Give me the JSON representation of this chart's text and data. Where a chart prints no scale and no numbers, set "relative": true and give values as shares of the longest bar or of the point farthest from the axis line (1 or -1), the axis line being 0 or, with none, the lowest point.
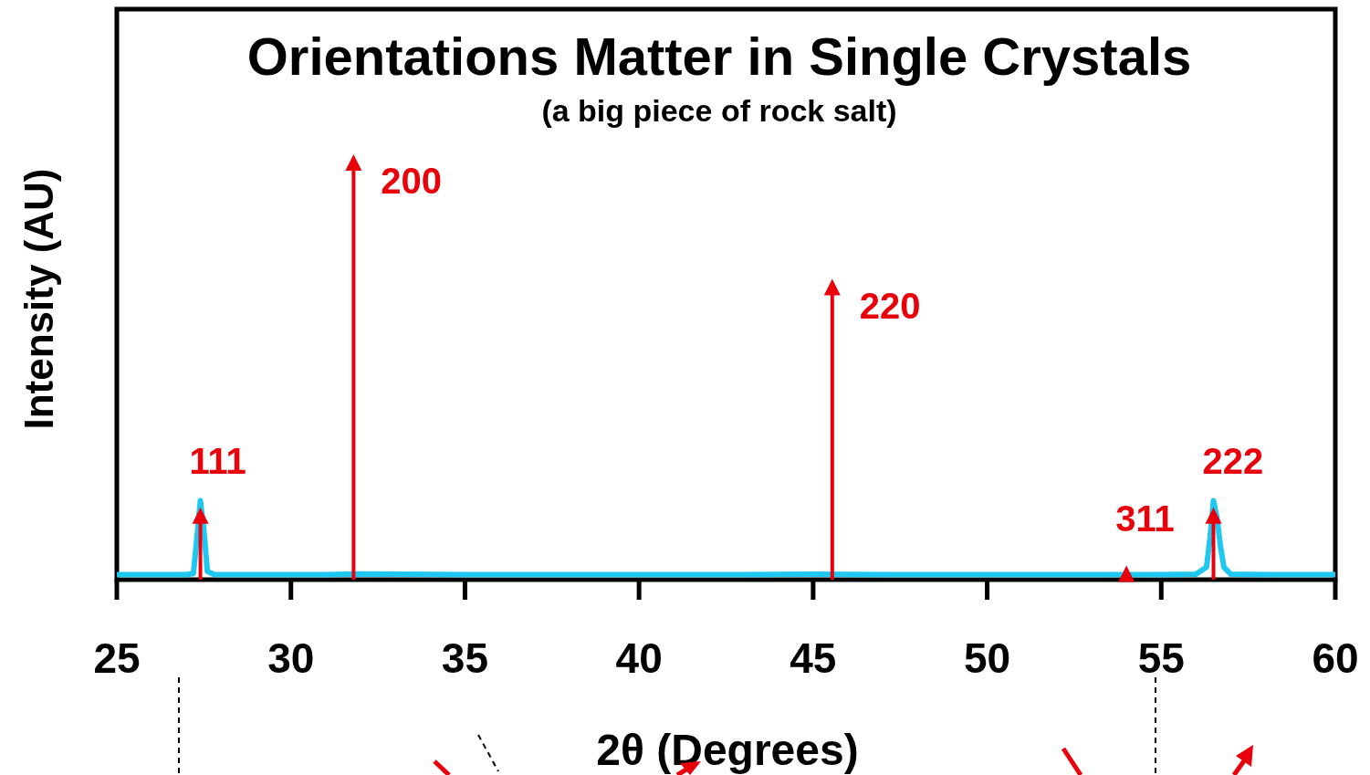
{
  "chart_data": {
    "type": "line",
    "title": "Orientations Matter in Single Crystals",
    "subtitle": "(a big piece of rock salt)",
    "xlabel": "2θ (Degrees)",
    "ylabel": "Intensity (AU)",
    "relative": true,
    "xlim": [
      25,
      60
    ],
    "xticks": [
      25,
      30,
      35,
      40,
      45,
      50,
      55,
      60
    ],
    "grid": false,
    "series": [
      {
        "color": "#1ec8f0",
        "x": [
          25,
          26,
          27,
          27.2,
          27.3,
          27.4,
          27.5,
          27.6,
          27.8,
          29,
          31,
          32,
          33,
          35,
          38,
          40,
          43,
          45,
          47,
          50,
          53,
          55,
          56,
          56.3,
          56.4,
          56.5,
          56.6,
          56.7,
          56.8,
          57,
          58,
          60
        ],
        "values": [
          0.012,
          0.012,
          0.012,
          0.015,
          0.1,
          0.19,
          0.12,
          0.02,
          0.012,
          0.012,
          0.012,
          0.014,
          0.013,
          0.012,
          0.012,
          0.012,
          0.012,
          0.013,
          0.012,
          0.012,
          0.012,
          0.012,
          0.013,
          0.03,
          0.1,
          0.19,
          0.15,
          0.08,
          0.03,
          0.013,
          0.012,
          0.012
        ]
      },
      {
        "type": "lollipop",
        "color": "#e8000b",
        "marker": "triangle",
        "x": [
          27.4,
          31.8,
          45.55,
          54,
          56.5
        ],
        "values": [
          0.15,
          1,
          0.7,
          0.01,
          0.15
        ]
      }
    ],
    "annotations": [
      {
        "text": "111",
        "x": 27.4,
        "y": 0.15
      },
      {
        "text": "200",
        "x": 31.8,
        "y": 1
      },
      {
        "text": "220",
        "x": 45.55,
        "y": 0.7
      },
      {
        "text": "311",
        "x": 54,
        "y": 0.01
      },
      {
        "text": "222",
        "x": 56.5,
        "y": 0.15
      }
    ]
  }
}
